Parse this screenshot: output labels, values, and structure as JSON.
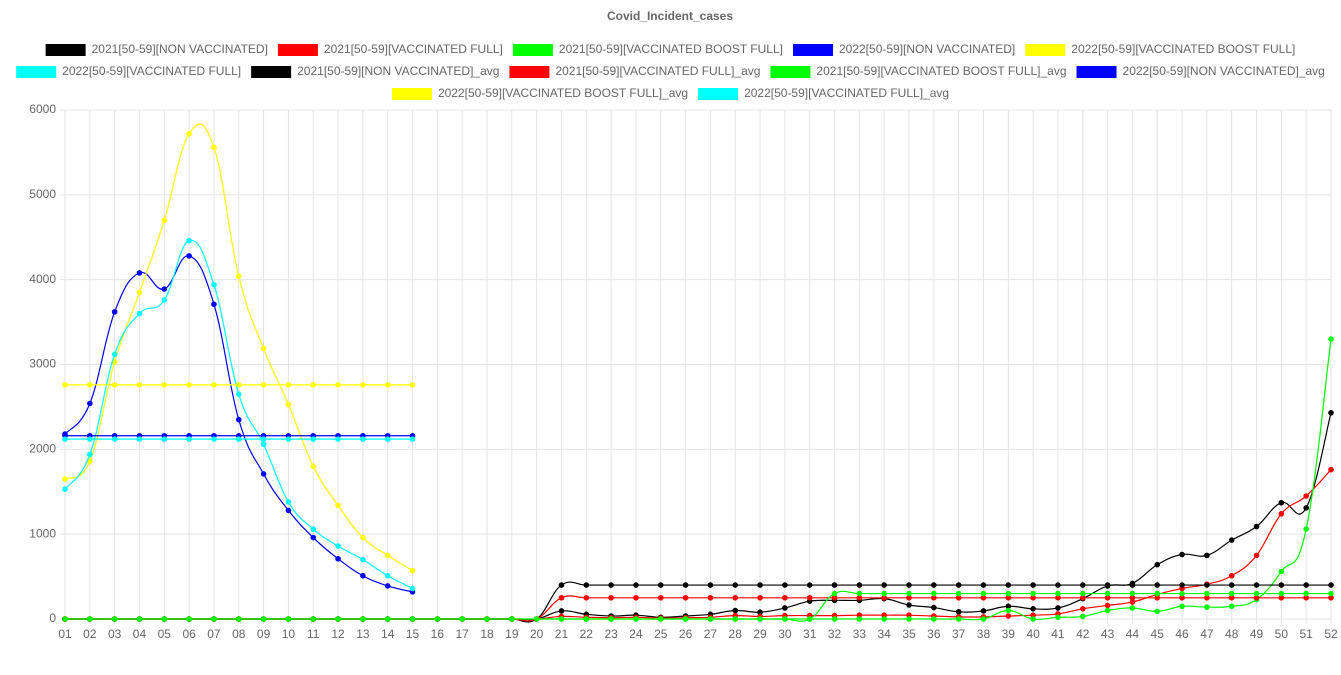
{
  "chart_data": {
    "type": "line",
    "title": "Covid_Incident_cases",
    "categories": [
      "01",
      "02",
      "03",
      "04",
      "05",
      "06",
      "07",
      "08",
      "09",
      "10",
      "11",
      "12",
      "13",
      "14",
      "15",
      "16",
      "17",
      "18",
      "19",
      "20",
      "21",
      "22",
      "23",
      "24",
      "25",
      "26",
      "27",
      "28",
      "29",
      "30",
      "31",
      "32",
      "33",
      "34",
      "35",
      "36",
      "37",
      "38",
      "39",
      "40",
      "41",
      "42",
      "43",
      "44",
      "45",
      "46",
      "47",
      "48",
      "49",
      "50",
      "51",
      "52"
    ],
    "ylim": [
      0,
      6000
    ],
    "yticks": [
      0,
      1000,
      2000,
      3000,
      4000,
      5000,
      6000
    ],
    "grid": true,
    "legend": "top",
    "series": [
      {
        "name": "2021[50-59][NON VACCINATED]",
        "color": "#000000",
        "values": [
          0,
          0,
          0,
          0,
          0,
          0,
          0,
          0,
          0,
          0,
          0,
          0,
          0,
          0,
          0,
          0,
          0,
          0,
          0,
          0,
          95,
          55,
          35,
          45,
          20,
          35,
          55,
          100,
          80,
          130,
          210,
          220,
          220,
          240,
          165,
          135,
          85,
          95,
          150,
          120,
          130,
          240,
          390,
          420,
          640,
          760,
          750,
          930,
          1090,
          1370,
          1310,
          2430
        ]
      },
      {
        "name": "2021[50-59][VACCINATED FULL]",
        "color": "#ff0000",
        "values": [
          0,
          0,
          0,
          0,
          0,
          0,
          0,
          0,
          0,
          0,
          0,
          0,
          0,
          0,
          0,
          0,
          0,
          0,
          0,
          0,
          30,
          20,
          15,
          20,
          10,
          15,
          20,
          40,
          30,
          40,
          40,
          40,
          45,
          45,
          45,
          35,
          25,
          25,
          35,
          45,
          60,
          120,
          160,
          200,
          290,
          360,
          410,
          510,
          750,
          1240,
          1450,
          1760
        ]
      },
      {
        "name": "2021[50-59][VACCINATED BOOST FULL]",
        "color": "#00ff00",
        "values": [
          0,
          0,
          0,
          0,
          0,
          0,
          0,
          0,
          0,
          0,
          0,
          0,
          0,
          0,
          0,
          0,
          0,
          0,
          0,
          0,
          0,
          0,
          0,
          0,
          0,
          0,
          0,
          0,
          0,
          0,
          0,
          0,
          0,
          0,
          0,
          0,
          0,
          0,
          100,
          0,
          20,
          30,
          100,
          130,
          90,
          150,
          140,
          150,
          230,
          560,
          1060,
          3300
        ]
      },
      {
        "name": "2022[50-59][NON VACCINATED]",
        "color": "#0000ff",
        "values": [
          2180,
          2540,
          3620,
          4080,
          3890,
          4280,
          3710,
          2350,
          1710,
          1280,
          960,
          710,
          510,
          390,
          320,
          null,
          null,
          null,
          null,
          null,
          null,
          null,
          null,
          null,
          null,
          null,
          null,
          null,
          null,
          null,
          null,
          null,
          null,
          null,
          null,
          null,
          null,
          null,
          null,
          null,
          null,
          null,
          null,
          null,
          null,
          null,
          null,
          null,
          null,
          null,
          null,
          null
        ]
      },
      {
        "name": "2022[50-59][VACCINATED BOOST FULL]",
        "color": "#ffff00",
        "values": [
          1650,
          1860,
          3030,
          3850,
          4700,
          5720,
          5560,
          4040,
          3190,
          2530,
          1800,
          1340,
          960,
          750,
          570,
          null,
          null,
          null,
          null,
          null,
          null,
          null,
          null,
          null,
          null,
          null,
          null,
          null,
          null,
          null,
          null,
          null,
          null,
          null,
          null,
          null,
          null,
          null,
          null,
          null,
          null,
          null,
          null,
          null,
          null,
          null,
          null,
          null,
          null,
          null,
          null,
          null
        ]
      },
      {
        "name": "2022[50-59][VACCINATED FULL]",
        "color": "#00ffff",
        "values": [
          1530,
          1940,
          3120,
          3600,
          3760,
          4460,
          3940,
          2650,
          2060,
          1380,
          1060,
          860,
          700,
          510,
          360,
          null,
          null,
          null,
          null,
          null,
          null,
          null,
          null,
          null,
          null,
          null,
          null,
          null,
          null,
          null,
          null,
          null,
          null,
          null,
          null,
          null,
          null,
          null,
          null,
          null,
          null,
          null,
          null,
          null,
          null,
          null,
          null,
          null,
          null,
          null,
          null,
          null
        ]
      },
      {
        "name": "2021[50-59][NON VACCINATED]_avg",
        "color": "#000000",
        "values": [
          0,
          0,
          0,
          0,
          0,
          0,
          0,
          0,
          0,
          0,
          0,
          0,
          0,
          0,
          0,
          0,
          0,
          0,
          0,
          0,
          400,
          400,
          400,
          400,
          400,
          400,
          400,
          400,
          400,
          400,
          400,
          400,
          400,
          400,
          400,
          400,
          400,
          400,
          400,
          400,
          400,
          400,
          400,
          400,
          400,
          400,
          400,
          400,
          400,
          400,
          400,
          400
        ]
      },
      {
        "name": "2021[50-59][VACCINATED FULL]_avg",
        "color": "#ff0000",
        "values": [
          0,
          0,
          0,
          0,
          0,
          0,
          0,
          0,
          0,
          0,
          0,
          0,
          0,
          0,
          0,
          0,
          0,
          0,
          0,
          0,
          250,
          250,
          250,
          250,
          250,
          250,
          250,
          250,
          250,
          250,
          250,
          250,
          250,
          250,
          250,
          250,
          250,
          250,
          250,
          250,
          250,
          250,
          250,
          250,
          250,
          250,
          250,
          250,
          250,
          250,
          250,
          250
        ]
      },
      {
        "name": "2021[50-59][VACCINATED BOOST FULL]_avg",
        "color": "#00ff00",
        "values": [
          0,
          0,
          0,
          0,
          0,
          0,
          0,
          0,
          0,
          0,
          0,
          0,
          0,
          0,
          0,
          0,
          0,
          0,
          0,
          0,
          0,
          0,
          0,
          0,
          0,
          0,
          0,
          0,
          0,
          0,
          0,
          300,
          300,
          300,
          300,
          300,
          300,
          300,
          300,
          300,
          300,
          300,
          300,
          300,
          300,
          300,
          300,
          300,
          300,
          300,
          300,
          300
        ]
      },
      {
        "name": "2022[50-59][NON VACCINATED]_avg",
        "color": "#0000ff",
        "values": [
          2160,
          2160,
          2160,
          2160,
          2160,
          2160,
          2160,
          2160,
          2160,
          2160,
          2160,
          2160,
          2160,
          2160,
          2160,
          null,
          null,
          null,
          null,
          null,
          null,
          null,
          null,
          null,
          null,
          null,
          null,
          null,
          null,
          null,
          null,
          null,
          null,
          null,
          null,
          null,
          null,
          null,
          null,
          null,
          null,
          null,
          null,
          null,
          null,
          null,
          null,
          null,
          null,
          null,
          null,
          null
        ]
      },
      {
        "name": "2022[50-59][VACCINATED BOOST FULL]_avg",
        "color": "#ffff00",
        "values": [
          2760,
          2760,
          2760,
          2760,
          2760,
          2760,
          2760,
          2760,
          2760,
          2760,
          2760,
          2760,
          2760,
          2760,
          2760,
          null,
          null,
          null,
          null,
          null,
          null,
          null,
          null,
          null,
          null,
          null,
          null,
          null,
          null,
          null,
          null,
          null,
          null,
          null,
          null,
          null,
          null,
          null,
          null,
          null,
          null,
          null,
          null,
          null,
          null,
          null,
          null,
          null,
          null,
          null,
          null,
          null
        ]
      },
      {
        "name": "2022[50-59][VACCINATED FULL]_avg",
        "color": "#00ffff",
        "values": [
          2120,
          2120,
          2120,
          2120,
          2120,
          2120,
          2120,
          2120,
          2120,
          2120,
          2120,
          2120,
          2120,
          2120,
          2120,
          null,
          null,
          null,
          null,
          null,
          null,
          null,
          null,
          null,
          null,
          null,
          null,
          null,
          null,
          null,
          null,
          null,
          null,
          null,
          null,
          null,
          null,
          null,
          null,
          null,
          null,
          null,
          null,
          null,
          null,
          null,
          null,
          null,
          null,
          null,
          null,
          null
        ]
      }
    ]
  }
}
